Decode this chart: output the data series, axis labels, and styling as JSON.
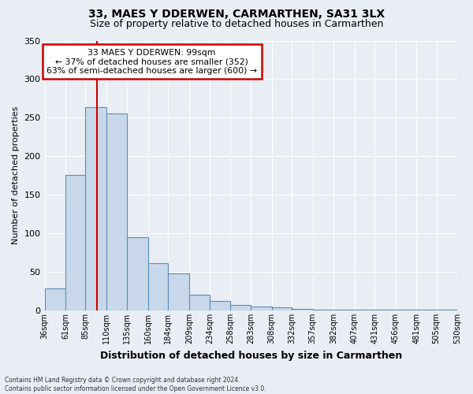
{
  "title": "33, MAES Y DDERWEN, CARMARTHEN, SA31 3LX",
  "subtitle": "Size of property relative to detached houses in Carmarthen",
  "xlabel": "Distribution of detached houses by size in Carmarthen",
  "ylabel": "Number of detached properties",
  "bar_edges": [
    36,
    61,
    85,
    110,
    135,
    160,
    184,
    209,
    234,
    258,
    283,
    308,
    332,
    357,
    382,
    407,
    431,
    456,
    481,
    505,
    530
  ],
  "bar_heights": [
    29,
    176,
    264,
    255,
    95,
    61,
    48,
    20,
    12,
    7,
    5,
    4,
    2,
    1,
    1,
    1,
    1,
    1,
    1,
    1
  ],
  "bar_color": "#c8d8ea",
  "bar_edge_color": "#5b8db8",
  "vline_x": 99,
  "vline_color": "#cc0000",
  "ylim": [
    0,
    350
  ],
  "yticks": [
    0,
    50,
    100,
    150,
    200,
    250,
    300,
    350
  ],
  "tick_labels": [
    "36sqm",
    "61sqm",
    "85sqm",
    "110sqm",
    "135sqm",
    "160sqm",
    "184sqm",
    "209sqm",
    "234sqm",
    "258sqm",
    "283sqm",
    "308sqm",
    "332sqm",
    "357sqm",
    "382sqm",
    "407sqm",
    "431sqm",
    "456sqm",
    "481sqm",
    "505sqm",
    "530sqm"
  ],
  "annotation_title": "33 MAES Y DDERWEN: 99sqm",
  "annotation_line1": "← 37% of detached houses are smaller (352)",
  "annotation_line2": "63% of semi-detached houses are larger (600) →",
  "annotation_box_color": "#cc0000",
  "footnote1": "Contains HM Land Registry data © Crown copyright and database right 2024.",
  "footnote2": "Contains public sector information licensed under the Open Government Licence v3.0.",
  "background_color": "#e8eef4",
  "grid_color": "#ffffff"
}
